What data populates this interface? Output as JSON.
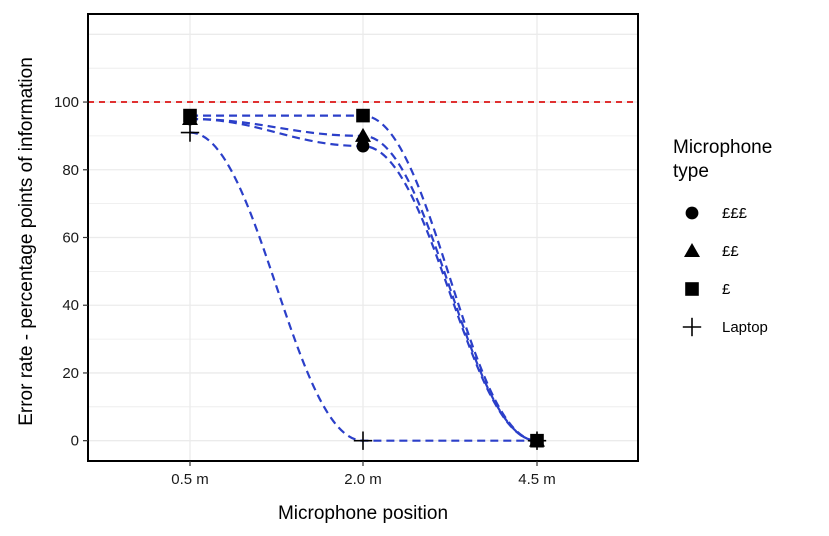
{
  "chart_data": {
    "type": "line",
    "xlabel": "Microphone position",
    "ylabel": "Error rate - percentage points of information",
    "categories": [
      "0.5 m",
      "2.0 m",
      "4.5 m"
    ],
    "yticks": [
      0,
      20,
      40,
      60,
      80,
      100
    ],
    "ylim": [
      -6,
      126
    ],
    "grid": true,
    "reference_line": {
      "y": 100,
      "color": "#e03030",
      "style": "dashed"
    },
    "line_color": "#2b3fc9",
    "legend": {
      "title": "Microphone type",
      "title_lines": [
        "Microphone",
        "type"
      ],
      "position": "right"
    },
    "series": [
      {
        "name": "£££",
        "marker": "circle",
        "values": [
          95,
          87,
          0
        ]
      },
      {
        "name": "££",
        "marker": "triangle",
        "values": [
          95,
          90,
          0
        ]
      },
      {
        "name": "£",
        "marker": "square",
        "values": [
          96,
          96,
          0
        ]
      },
      {
        "name": "Laptop",
        "marker": "plus",
        "values": [
          91,
          0,
          0
        ]
      }
    ]
  }
}
